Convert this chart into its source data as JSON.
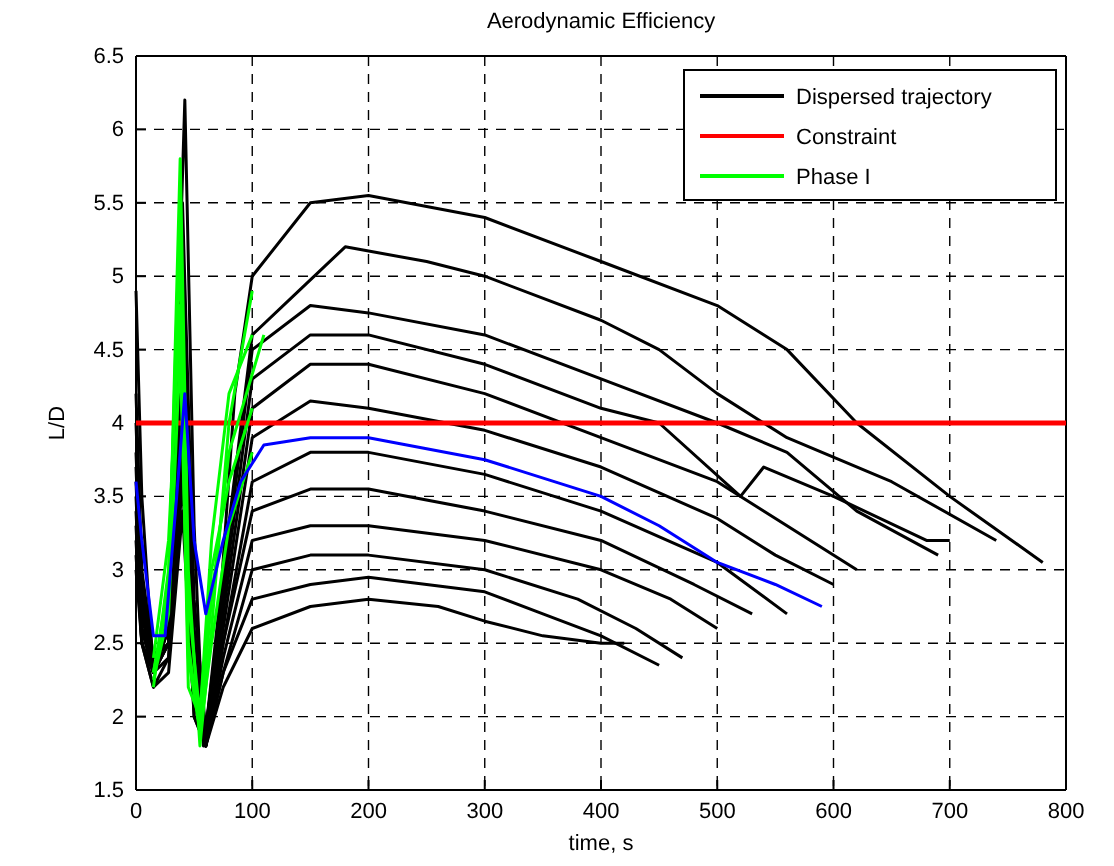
{
  "chart_data": {
    "type": "line",
    "title": "Aerodynamic Efficiency",
    "xlabel": "time, s",
    "ylabel": "L/D",
    "xlim": [
      0,
      800
    ],
    "xticks": [
      0,
      100,
      200,
      300,
      400,
      500,
      600,
      700,
      800
    ],
    "ylim": [
      1.5,
      6.5
    ],
    "yticks": [
      1.5,
      2,
      2.5,
      3,
      3.5,
      4,
      4.5,
      5,
      5.5,
      6,
      6.5
    ],
    "grid": true,
    "legend": "top right",
    "series": [
      {
        "name": "Dispersed trajectory",
        "color": "#000000",
        "x": [
          0,
          5,
          15,
          28,
          42,
          50,
          58,
          70,
          85,
          100,
          150,
          200,
          300,
          400,
          500,
          560,
          620,
          700,
          780
        ],
        "values": [
          4.9,
          3.5,
          2.3,
          2.6,
          6.2,
          3.3,
          1.8,
          2.5,
          4.2,
          5.0,
          5.5,
          5.55,
          5.4,
          5.1,
          4.8,
          4.5,
          4.0,
          3.5,
          3.05
        ]
      },
      {
        "color": "#000000",
        "x": [
          0,
          5,
          15,
          28,
          40,
          50,
          60,
          75,
          100,
          140,
          180,
          250,
          300,
          400,
          450,
          500,
          560,
          650,
          740
        ],
        "values": [
          4.2,
          3.0,
          2.4,
          2.5,
          5.5,
          2.8,
          1.9,
          3.0,
          4.6,
          4.9,
          5.2,
          5.1,
          5.0,
          4.7,
          4.5,
          4.2,
          3.9,
          3.6,
          3.2
        ]
      },
      {
        "color": "#000000",
        "x": [
          0,
          5,
          15,
          28,
          40,
          50,
          60,
          75,
          100,
          150,
          200,
          300,
          400,
          500,
          560,
          620,
          690
        ],
        "values": [
          4.0,
          2.9,
          2.3,
          2.6,
          5.2,
          2.6,
          1.9,
          2.9,
          4.5,
          4.8,
          4.75,
          4.6,
          4.3,
          4.0,
          3.8,
          3.4,
          3.1
        ]
      },
      {
        "color": "#000000",
        "x": [
          0,
          5,
          15,
          28,
          40,
          50,
          60,
          75,
          100,
          150,
          200,
          300,
          400,
          450,
          520,
          540,
          600,
          680,
          700
        ],
        "values": [
          3.8,
          2.8,
          2.3,
          2.7,
          5.0,
          2.5,
          1.9,
          2.8,
          4.3,
          4.6,
          4.6,
          4.4,
          4.1,
          4.0,
          3.5,
          3.7,
          3.5,
          3.2,
          3.2
        ]
      },
      {
        "color": "#000000",
        "x": [
          0,
          5,
          15,
          28,
          40,
          50,
          60,
          75,
          100,
          150,
          200,
          300,
          400,
          500,
          560,
          620
        ],
        "values": [
          3.7,
          2.7,
          2.3,
          2.6,
          4.8,
          2.4,
          1.9,
          2.7,
          4.1,
          4.4,
          4.4,
          4.2,
          3.9,
          3.6,
          3.3,
          3.0
        ]
      },
      {
        "color": "#000000",
        "x": [
          0,
          5,
          15,
          28,
          40,
          50,
          60,
          75,
          100,
          150,
          200,
          300,
          400,
          500,
          550,
          600
        ],
        "values": [
          3.6,
          2.6,
          2.4,
          2.6,
          4.6,
          2.3,
          1.8,
          2.6,
          3.9,
          4.15,
          4.1,
          3.95,
          3.7,
          3.35,
          3.1,
          2.9
        ]
      },
      {
        "color": "#000000",
        "x": [
          0,
          5,
          15,
          28,
          40,
          50,
          60,
          75,
          100,
          150,
          200,
          300,
          400,
          500,
          560
        ],
        "values": [
          3.5,
          2.6,
          2.3,
          2.5,
          4.4,
          2.2,
          1.8,
          2.5,
          3.6,
          3.8,
          3.8,
          3.65,
          3.4,
          3.05,
          2.7
        ]
      },
      {
        "color": "#000000",
        "x": [
          0,
          5,
          15,
          28,
          40,
          50,
          60,
          75,
          100,
          150,
          200,
          300,
          400,
          480,
          530
        ],
        "values": [
          3.4,
          2.6,
          2.3,
          2.5,
          4.2,
          2.2,
          1.8,
          2.5,
          3.4,
          3.55,
          3.55,
          3.4,
          3.2,
          2.9,
          2.7
        ]
      },
      {
        "color": "#000000",
        "x": [
          0,
          5,
          15,
          28,
          40,
          50,
          60,
          75,
          100,
          150,
          200,
          300,
          400,
          460,
          500
        ],
        "values": [
          3.3,
          2.5,
          2.3,
          2.5,
          4.0,
          2.1,
          1.8,
          2.4,
          3.2,
          3.3,
          3.3,
          3.2,
          3.0,
          2.8,
          2.6
        ]
      },
      {
        "color": "#000000",
        "x": [
          0,
          5,
          15,
          28,
          40,
          50,
          60,
          75,
          100,
          150,
          200,
          300,
          380,
          430,
          470
        ],
        "values": [
          3.2,
          2.5,
          2.3,
          2.4,
          3.8,
          2.1,
          1.8,
          2.3,
          3.0,
          3.1,
          3.1,
          3.0,
          2.8,
          2.6,
          2.4
        ]
      },
      {
        "color": "#000000",
        "x": [
          0,
          5,
          15,
          28,
          40,
          50,
          60,
          75,
          100,
          150,
          200,
          300,
          350,
          400,
          450
        ],
        "values": [
          3.1,
          2.5,
          2.2,
          2.4,
          3.6,
          2.0,
          1.8,
          2.3,
          2.8,
          2.9,
          2.95,
          2.85,
          2.7,
          2.55,
          2.35
        ]
      },
      {
        "color": "#000000",
        "x": [
          0,
          5,
          15,
          28,
          40,
          50,
          60,
          75,
          100,
          150,
          200,
          260,
          300,
          350,
          400,
          420
        ],
        "values": [
          3.0,
          2.5,
          2.2,
          2.3,
          3.4,
          2.0,
          1.8,
          2.2,
          2.6,
          2.75,
          2.8,
          2.75,
          2.65,
          2.55,
          2.5,
          2.5
        ]
      },
      {
        "name": "Constraint",
        "color": "#ff0000",
        "x": [
          0,
          800
        ],
        "values": [
          4,
          4
        ]
      },
      {
        "name": "Phase I",
        "color": "#00ff00",
        "x": [
          15,
          28,
          38,
          45,
          55,
          65,
          80,
          100
        ],
        "values": [
          2.3,
          2.8,
          5.8,
          3.0,
          1.8,
          2.6,
          4.0,
          4.9
        ]
      },
      {
        "color": "#00ff00",
        "x": [
          15,
          28,
          38,
          45,
          55,
          65,
          80,
          110
        ],
        "values": [
          2.2,
          3.0,
          5.2,
          2.5,
          1.9,
          2.8,
          3.8,
          4.6
        ]
      },
      {
        "color": "#00ff00",
        "x": [
          15,
          28,
          38,
          45,
          55,
          65,
          80,
          100
        ],
        "values": [
          2.4,
          3.2,
          4.8,
          2.2,
          2.0,
          3.0,
          3.6,
          4.1
        ]
      },
      {
        "color": "#00ff00",
        "x": [
          15,
          28,
          38,
          45,
          55,
          65,
          80,
          100
        ],
        "values": [
          2.3,
          2.9,
          5.5,
          2.8,
          2.0,
          3.2,
          4.2,
          4.6
        ]
      },
      {
        "color": "#00ff00",
        "x": [
          15,
          28,
          38,
          45,
          55,
          65,
          80,
          100
        ],
        "values": [
          2.25,
          2.7,
          4.5,
          2.4,
          1.9,
          2.5,
          3.3,
          3.8
        ]
      },
      {
        "color": "#0000ff",
        "x": [
          0,
          5,
          15,
          25,
          35,
          42,
          50,
          60,
          75,
          90,
          110,
          150,
          200,
          300,
          400,
          450,
          500,
          550,
          590
        ],
        "values": [
          3.6,
          3.2,
          2.55,
          2.55,
          3.5,
          4.2,
          3.2,
          2.7,
          3.2,
          3.6,
          3.85,
          3.9,
          3.9,
          3.75,
          3.5,
          3.3,
          3.05,
          2.9,
          2.75
        ]
      }
    ]
  }
}
